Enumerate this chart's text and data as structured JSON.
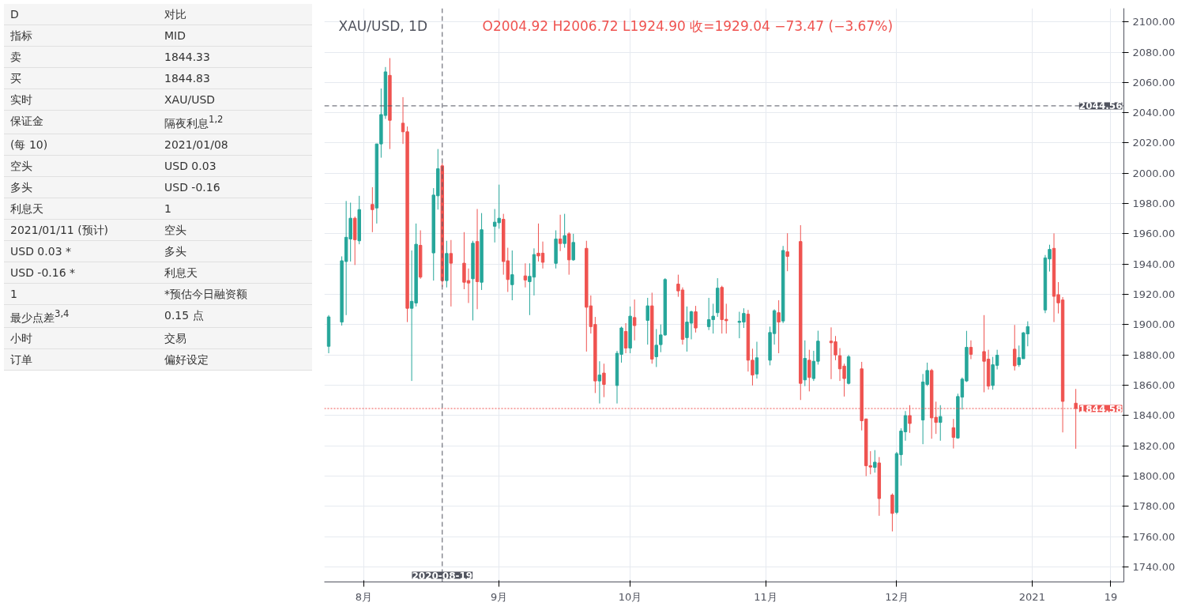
{
  "chart_data": {
    "type": "candlestick",
    "title": "XAU/USD, 1D",
    "subtitle": "O2004.92 H2006.72 L1924.90 收=1929.04 −73.47 (−3.67%)",
    "x": [
      "2020-07-24",
      "2020-07-27",
      "2020-07-28",
      "2020-07-29",
      "2020-07-30",
      "2020-07-31",
      "2020-08-03",
      "2020-08-04",
      "2020-08-05",
      "2020-08-06",
      "2020-08-07",
      "2020-08-10",
      "2020-08-11",
      "2020-08-12",
      "2020-08-13",
      "2020-08-14",
      "2020-08-17",
      "2020-08-18",
      "2020-08-19",
      "2020-08-20",
      "2020-08-21",
      "2020-08-24",
      "2020-08-25",
      "2020-08-26",
      "2020-08-27",
      "2020-08-28",
      "2020-08-31",
      "2020-09-01",
      "2020-09-02",
      "2020-09-03",
      "2020-09-04",
      "2020-09-07",
      "2020-09-08",
      "2020-09-09",
      "2020-09-10",
      "2020-09-11",
      "2020-09-14",
      "2020-09-15",
      "2020-09-16",
      "2020-09-17",
      "2020-09-18",
      "2020-09-21",
      "2020-09-22",
      "2020-09-23",
      "2020-09-24",
      "2020-09-25",
      "2020-09-28",
      "2020-09-29",
      "2020-09-30",
      "2020-10-01",
      "2020-10-02",
      "2020-10-05",
      "2020-10-06",
      "2020-10-07",
      "2020-10-08",
      "2020-10-09",
      "2020-10-12",
      "2020-10-13",
      "2020-10-14",
      "2020-10-15",
      "2020-10-16",
      "2020-10-19",
      "2020-10-20",
      "2020-10-21",
      "2020-10-22",
      "2020-10-23",
      "2020-10-26",
      "2020-10-27",
      "2020-10-28",
      "2020-10-29",
      "2020-10-30",
      "2020-11-02",
      "2020-11-03",
      "2020-11-04",
      "2020-11-05",
      "2020-11-06",
      "2020-11-09",
      "2020-11-10",
      "2020-11-11",
      "2020-11-12",
      "2020-11-13",
      "2020-11-16",
      "2020-11-17",
      "2020-11-18",
      "2020-11-19",
      "2020-11-20",
      "2020-11-23",
      "2020-11-24",
      "2020-11-25",
      "2020-11-26",
      "2020-11-27",
      "2020-11-30",
      "2020-12-01",
      "2020-12-02",
      "2020-12-03",
      "2020-12-04",
      "2020-12-07",
      "2020-12-08",
      "2020-12-09",
      "2020-12-10",
      "2020-12-11",
      "2020-12-14",
      "2020-12-15",
      "2020-12-16",
      "2020-12-17",
      "2020-12-18",
      "2020-12-21",
      "2020-12-22",
      "2020-12-23",
      "2020-12-24",
      "2020-12-28",
      "2020-12-29",
      "2020-12-30",
      "2020-12-31",
      "2021-01-04",
      "2021-01-05",
      "2021-01-06",
      "2021-01-07",
      "2021-01-08",
      "2021-01-11"
    ],
    "ohlc": [
      [
        1885.7,
        1906.3,
        1881.1,
        1905.1
      ],
      [
        1901.7,
        1945.1,
        1899.4,
        1942.2
      ],
      [
        1941.7,
        1981.7,
        1906.3,
        1957.7
      ],
      [
        1956.6,
        1980.6,
        1941.7,
        1970.3
      ],
      [
        1970.3,
        1971.4,
        1939.4,
        1956.1
      ],
      [
        1955.4,
        1985.1,
        1953.1,
        1976.0
      ],
      [
        1979.4,
        1990.8,
        1961.1,
        1976.0
      ],
      [
        1977.1,
        2019.4,
        1966.8,
        2019.4
      ],
      [
        2019.4,
        2056.0,
        2010.3,
        2038.8
      ],
      [
        2038.2,
        2070.2,
        2035.9,
        2067.0
      ],
      [
        2064.7,
        2076.1,
        2016.0,
        2035.0
      ],
      [
        2033.1,
        2050.3,
        2019.4,
        2027.4
      ],
      [
        2027.4,
        2030.9,
        1901.7,
        1910.8
      ],
      [
        1910.8,
        1949.0,
        1862.8,
        1915.4
      ],
      [
        1914.3,
        1966.8,
        1912.0,
        1953.1
      ],
      [
        1952.4,
        1962.3,
        1930.3,
        1931.4
      ],
      [
        1947.4,
        1990.2,
        1929.1,
        1985.6
      ],
      [
        1985.1,
        2016.0,
        1976.0,
        2003.0
      ],
      [
        2004.92,
        2006.72,
        1924.9,
        1929.04
      ],
      [
        1929.1,
        1955.4,
        1924.6,
        1947.0
      ],
      [
        1947.0,
        1955.9,
        1912.0,
        1940.6
      ],
      [
        1940.6,
        1961.1,
        1923.4,
        1928.0
      ],
      [
        1929.1,
        1937.1,
        1914.3,
        1927.5
      ],
      [
        1930.3,
        1955.4,
        1902.8,
        1953.8
      ],
      [
        1954.9,
        1976.4,
        1910.2,
        1928.4
      ],
      [
        1928.0,
        1973.7,
        1922.9,
        1962.7
      ],
      [
        1965.0,
        1976.4,
        1954.3,
        1967.7
      ],
      [
        1967.3,
        1992.5,
        1963.4,
        1970.3
      ],
      [
        1969.6,
        1973.2,
        1933.0,
        1941.7
      ],
      [
        1942.2,
        1950.8,
        1921.6,
        1929.8
      ],
      [
        1926.4,
        1949.0,
        1916.1,
        1933.0
      ],
      [
        1932.2,
        1940.5,
        1924.6,
        1929.5
      ],
      [
        1928.4,
        1940.5,
        1906.3,
        1931.9
      ],
      [
        1931.4,
        1950.4,
        1919.3,
        1946.3
      ],
      [
        1947.2,
        1966.8,
        1941.7,
        1945.4
      ],
      [
        1947.2,
        1954.9,
        1937.1,
        1941.2
      ],
      [
        1940.5,
        1962.3,
        1937.1,
        1956.6
      ],
      [
        1956.6,
        1972.6,
        1948.6,
        1953.6
      ],
      [
        1953.6,
        1973.2,
        1950.8,
        1958.8
      ],
      [
        1960.0,
        1961.1,
        1933.0,
        1942.8
      ],
      [
        1942.8,
        1960.0,
        1942.2,
        1954.3
      ],
      [
        1950.4,
        1955.4,
        1882.2,
        1911.5
      ],
      [
        1912.4,
        1919.3,
        1894.1,
        1898.7
      ],
      [
        1900.1,
        1905.1,
        1854.8,
        1862.8
      ],
      [
        1862.8,
        1875.8,
        1847.9,
        1866.7
      ],
      [
        1868.0,
        1874.2,
        1852.1,
        1860.5
      ],
      [
        1859.8,
        1882.7,
        1847.9,
        1881.1
      ],
      [
        1880.4,
        1898.7,
        1874.9,
        1897.8
      ],
      [
        1895.5,
        1901.0,
        1881.1,
        1884.5
      ],
      [
        1884.5,
        1912.0,
        1881.1,
        1905.6
      ],
      [
        1904.7,
        1916.6,
        1889.6,
        1899.4
      ],
      [
        1902.8,
        1917.7,
        1886.8,
        1912.4
      ],
      [
        1912.4,
        1921.1,
        1874.2,
        1877.2
      ],
      [
        1878.8,
        1897.1,
        1872.0,
        1886.4
      ],
      [
        1886.8,
        1900.1,
        1881.8,
        1893.2
      ],
      [
        1893.2,
        1930.7,
        1892.6,
        1929.8
      ],
      [
        1926.8,
        1933.0,
        1918.4,
        1922.3
      ],
      [
        1922.9,
        1924.6,
        1886.8,
        1890.3
      ],
      [
        1891.4,
        1912.0,
        1882.2,
        1901.7
      ],
      [
        1901.0,
        1909.2,
        1890.3,
        1908.5
      ],
      [
        1908.5,
        1912.4,
        1894.8,
        1897.8
      ],
      [
        1898.7,
        1917.7,
        1896.4,
        1903.3
      ],
      [
        1903.3,
        1913.8,
        1894.1,
        1905.6
      ],
      [
        1907.9,
        1930.7,
        1905.1,
        1924.1
      ],
      [
        1924.6,
        1925.7,
        1894.1,
        1903.3
      ],
      [
        1903.5,
        1913.8,
        1894.1,
        1902.6
      ],
      [
        1901.5,
        1908.5,
        1891.0,
        1902.2
      ],
      [
        1901.7,
        1910.8,
        1897.8,
        1907.4
      ],
      [
        1906.9,
        1909.7,
        1869.0,
        1876.5
      ],
      [
        1876.5,
        1884.1,
        1859.8,
        1866.7
      ],
      [
        1867.4,
        1888.7,
        1864.4,
        1878.1
      ],
      [
        1876.5,
        1898.7,
        1873.1,
        1894.8
      ],
      [
        1894.1,
        1910.1,
        1886.8,
        1909.2
      ],
      [
        1907.9,
        1916.1,
        1881.1,
        1901.7
      ],
      [
        1902.4,
        1952.0,
        1901.0,
        1949.0
      ],
      [
        1948.1,
        1960.4,
        1935.3,
        1945.1
      ],
      [
        1954.9,
        1965.7,
        1850.2,
        1861.2
      ],
      [
        1863.5,
        1889.6,
        1859.4,
        1877.7
      ],
      [
        1876.5,
        1883.4,
        1855.9,
        1865.1
      ],
      [
        1864.4,
        1882.7,
        1862.8,
        1875.8
      ],
      [
        1875.8,
        1896.0,
        1873.6,
        1889.1
      ],
      [
        1889.1,
        1898.2,
        1864.0,
        1888.0
      ],
      [
        1888.7,
        1892.5,
        1876.5,
        1880.0
      ],
      [
        1879.5,
        1884.5,
        1862.8,
        1870.8
      ],
      [
        1872.6,
        1874.2,
        1852.5,
        1864.4
      ],
      [
        1861.2,
        1880.0,
        1860.5,
        1878.8
      ],
      [
        1870.8,
        1875.4,
        1830.1,
        1836.5
      ],
      [
        1837.7,
        1837.7,
        1799.9,
        1806.8
      ],
      [
        1806.8,
        1816.4,
        1801.1,
        1805.9
      ],
      [
        1805.7,
        1817.1,
        1802.2,
        1809.1
      ],
      [
        1808.6,
        1812.5,
        1773.7,
        1785.1
      ],
      [
        1787.4,
        1788.5,
        1763.4,
        1775.3
      ],
      [
        1776.0,
        1815.9,
        1774.8,
        1814.8
      ],
      [
        1814.1,
        1831.5,
        1806.8,
        1829.7
      ],
      [
        1829.2,
        1842.9,
        1823.3,
        1839.9
      ],
      [
        1839.9,
        1846.8,
        1828.5,
        1834.7
      ],
      [
        1837.0,
        1867.4,
        1821.0,
        1862.1
      ],
      [
        1860.5,
        1874.9,
        1859.4,
        1869.7
      ],
      [
        1869.7,
        1870.8,
        1824.6,
        1838.4
      ],
      [
        1838.8,
        1849.1,
        1827.8,
        1835.4
      ],
      [
        1835.4,
        1846.8,
        1823.3,
        1839.3
      ],
      [
        1831.9,
        1837.7,
        1818.2,
        1825.5
      ],
      [
        1825.1,
        1854.4,
        1824.6,
        1852.5
      ],
      [
        1852.1,
        1865.1,
        1843.9,
        1864.0
      ],
      [
        1862.8,
        1895.9,
        1862.1,
        1885.0
      ],
      [
        1885.0,
        1889.6,
        1877.2,
        1880.4
      ],
      [
        1882.2,
        1906.3,
        1855.3,
        1875.8
      ],
      [
        1877.2,
        1883.4,
        1857.1,
        1859.4
      ],
      [
        1859.8,
        1878.7,
        1857.0,
        1873.5
      ],
      [
        1873.1,
        1883.4,
        1870.4,
        1879.8
      ],
      [
        1883.8,
        1899.8,
        1869.7,
        1872.8
      ],
      [
        1873.5,
        1886.2,
        1872.1,
        1878.2
      ],
      [
        1877.5,
        1895.1,
        1877.5,
        1894.6
      ],
      [
        1893.9,
        1902.2,
        1885.7,
        1898.7
      ],
      [
        1909.7,
        1946.0,
        1907.6,
        1944.1
      ],
      [
        1943.4,
        1952.8,
        1935.1,
        1949.7
      ],
      [
        1950.4,
        1960.3,
        1901.7,
        1918.7
      ],
      [
        1919.8,
        1928.1,
        1907.4,
        1914.4
      ],
      [
        1916.3,
        1918.2,
        1828.8,
        1849.3
      ],
      [
        1848.1,
        1857.5,
        1818.0,
        1844.6
      ]
    ],
    "xlim": [
      "2020-07-23",
      "2021-01-22"
    ],
    "xticks": [
      {
        "value": "2020-08-01",
        "label": "8月"
      },
      {
        "value": "2020-09-01",
        "label": "9月"
      },
      {
        "value": "2020-10-01",
        "label": "10月"
      },
      {
        "value": "2020-11-01",
        "label": "11月"
      },
      {
        "value": "2020-12-01",
        "label": "12月"
      },
      {
        "value": "2021-01-01",
        "label": "2021"
      },
      {
        "value": "2021-01-19",
        "label": "19"
      }
    ],
    "ylim": [
      1730,
      2109
    ],
    "yticks": [
      {
        "value": 1740,
        "label": "1740.00"
      },
      {
        "value": 1760,
        "label": "1760.00"
      },
      {
        "value": 1780,
        "label": "1780.00"
      },
      {
        "value": 1800,
        "label": "1800.00"
      },
      {
        "value": 1820,
        "label": "1820.00"
      },
      {
        "value": 1840,
        "label": "1840.00"
      },
      {
        "value": 1860,
        "label": "1860.00"
      },
      {
        "value": 1880,
        "label": "1880.00"
      },
      {
        "value": 1900,
        "label": "1900.00"
      },
      {
        "value": 1920,
        "label": "1920.00"
      },
      {
        "value": 1940,
        "label": "1940.00"
      },
      {
        "value": 1960,
        "label": "1960.00"
      },
      {
        "value": 1980,
        "label": "1980.00"
      },
      {
        "value": 2000,
        "label": "2000.00"
      },
      {
        "value": 2020,
        "label": "2020.00"
      },
      {
        "value": 2040,
        "label": "2040.00"
      },
      {
        "value": 2060,
        "label": "2060.00"
      },
      {
        "value": 2080,
        "label": "2080.00"
      },
      {
        "value": 2100,
        "label": "2100.00"
      }
    ],
    "grid": true,
    "ref_lines": [
      {
        "axis": "y",
        "value": 2044.56,
        "label": "2044.56",
        "color": "#50535e",
        "line_style": "dashed"
      },
      {
        "axis": "y",
        "value": 1844.58,
        "label": "1844.58",
        "color": "#ef5350",
        "line_style": "dotted"
      },
      {
        "axis": "x",
        "value": "2020-08-19",
        "label": "2020-08-19",
        "color": "#50535e",
        "line_style": "dashed"
      }
    ],
    "annotations": [
      "D",
      "对比",
      "指标",
      "MID",
      "卖",
      "1844.33",
      "买",
      "1844.83",
      "实时",
      "XAU/USD",
      "保证金",
      "隔夜利息$^{1,2}$",
      "(每 10)",
      "2021/01/08",
      "空头",
      "USD 0.03",
      "多头",
      "USD -0.16",
      "利息天",
      "1",
      "2021/01/11 (预计)",
      "空头",
      "USD 0.03 *",
      "多头",
      "USD -0.16 *",
      "利息天",
      "1",
      "*预估今日融资额",
      "最少点差$^{3,4}$",
      "0.15 点",
      "小时",
      "交易",
      "订单",
      "偏好设定"
    ]
  }
}
